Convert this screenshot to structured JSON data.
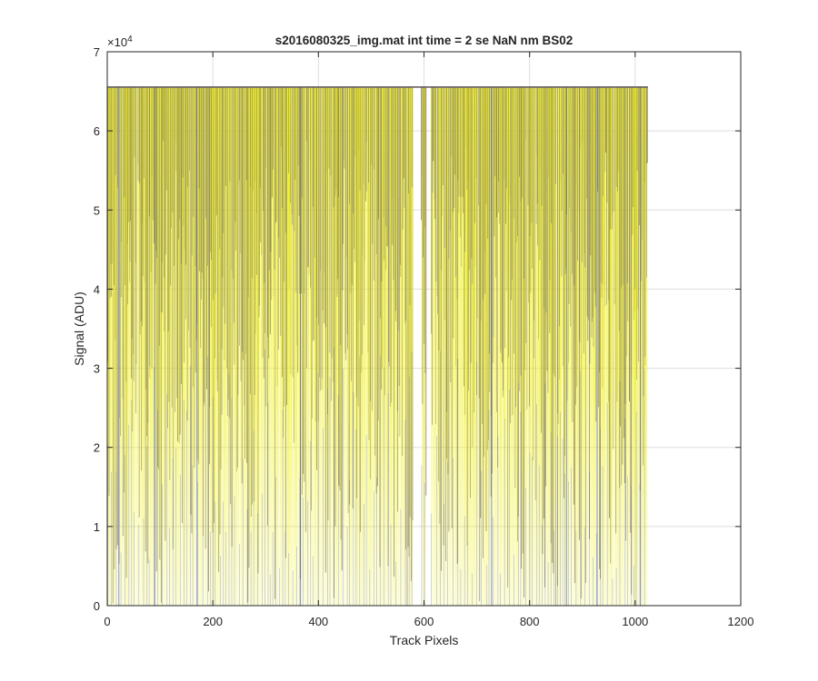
{
  "chart_data": {
    "type": "line",
    "title": "s2016080325_img.mat int time = 2 se  NaN nm BS02",
    "xlabel": "Track Pixels",
    "ylabel": "Signal (ADU)",
    "xlim": [
      0,
      1200
    ],
    "ylim": [
      0,
      70000
    ],
    "x_ticks": [
      0,
      200,
      400,
      600,
      800,
      1000,
      1200
    ],
    "x_tick_labels": [
      "0",
      "200",
      "400",
      "600",
      "800",
      "1000",
      "1200"
    ],
    "y_ticks": [
      0,
      10000,
      20000,
      30000,
      40000,
      50000,
      60000,
      70000
    ],
    "y_tick_labels": [
      "0",
      "1",
      "2",
      "3",
      "4",
      "5",
      "6",
      "7"
    ],
    "y_exponent_label": "×10",
    "y_exponent_power": "4",
    "grid": true,
    "saturation_level": 65535,
    "pixel_range": [
      1,
      1024
    ],
    "gaps": [
      [
        580,
        595
      ],
      [
        605,
        613
      ]
    ],
    "colors": {
      "dark_series": "#5a5060",
      "bright_series": "#f0f020",
      "blue_series": "#2a3cc8",
      "grid": "#dedede",
      "axes": "#262626"
    }
  }
}
